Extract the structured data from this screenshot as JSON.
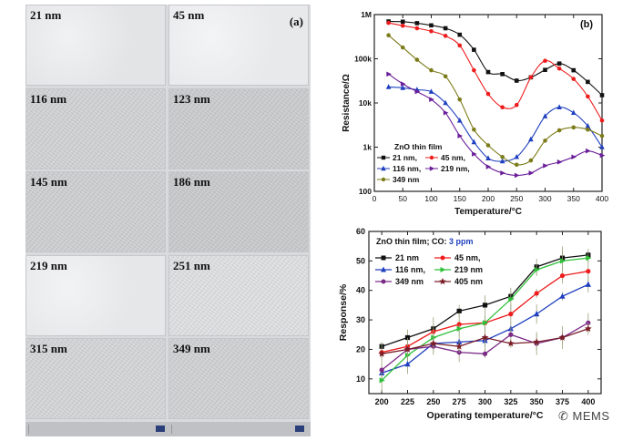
{
  "figure_a": {
    "panel_label": "(a)",
    "tiles": [
      "21 nm",
      "45 nm",
      "116 nm",
      "123 nm",
      "145 nm",
      "186 nm",
      "219 nm",
      "251 nm",
      "315 nm",
      "349 nm"
    ]
  },
  "watermark": "MEMS",
  "chart_data": [
    {
      "type": "line",
      "panel_label": "(b)",
      "xlabel": "Temperature/°C",
      "ylabel": "Resistance/Ω",
      "yscale": "log",
      "xlim": [
        0,
        400
      ],
      "ylim": [
        100,
        1000000
      ],
      "x_ticks": [
        "0",
        "50",
        "100",
        "150",
        "200",
        "250",
        "300",
        "350",
        "400"
      ],
      "y_ticks": [
        "100",
        "1k",
        "10k",
        "100k",
        "1M"
      ],
      "legend_title": "ZnO thin film",
      "legend_labels": [
        "21 nm,",
        "45 nm,",
        "116 nm,",
        "219 nm,",
        "349 nm"
      ],
      "x": [
        25,
        50,
        75,
        100,
        125,
        150,
        175,
        200,
        225,
        250,
        275,
        300,
        325,
        350,
        375,
        400
      ],
      "series": [
        {
          "name": "21 nm",
          "color": "#111111",
          "marker": "square",
          "values": [
            700000,
            690000,
            640000,
            570000,
            490000,
            350000,
            160000,
            50000,
            45000,
            32000,
            38000,
            56000,
            78000,
            55000,
            30000,
            15000
          ]
        },
        {
          "name": "45 nm",
          "color": "#ee1c1c",
          "marker": "circle",
          "values": [
            650000,
            560000,
            490000,
            420000,
            330000,
            200000,
            55000,
            16000,
            8000,
            9000,
            38000,
            90000,
            60000,
            35000,
            14000,
            4000
          ]
        },
        {
          "name": "116 nm",
          "color": "#1f3fbf",
          "marker": "triangle-up",
          "values": [
            23000,
            22000,
            20000,
            18000,
            10000,
            4000,
            1300,
            560,
            480,
            600,
            1500,
            5000,
            8000,
            6000,
            3000,
            1000
          ]
        },
        {
          "name": "219 nm",
          "color": "#6a1e9a",
          "marker": "triangle-right",
          "values": [
            45000,
            27000,
            18000,
            12000,
            6000,
            1800,
            700,
            360,
            260,
            230,
            260,
            380,
            460,
            600,
            820,
            650
          ]
        },
        {
          "name": "349 nm",
          "color": "#7c7c1a",
          "marker": "circle",
          "values": [
            340000,
            180000,
            95000,
            55000,
            40000,
            12000,
            2500,
            1100,
            600,
            400,
            500,
            1400,
            2400,
            2800,
            2500,
            1800
          ]
        }
      ]
    },
    {
      "type": "line",
      "xlabel": "Operating temperature/°C",
      "ylabel": "Response/%",
      "xlim": [
        187.5,
        412.5
      ],
      "ylim": [
        5,
        60
      ],
      "x_ticks": [
        "200",
        "225",
        "250",
        "275",
        "300",
        "325",
        "350",
        "375",
        "400"
      ],
      "y_ticks": [
        "10",
        "20",
        "30",
        "40",
        "50",
        "60"
      ],
      "legend_title": "ZnO thin film; CO: ",
      "legend_title_highlight": "3 ppm",
      "legend_labels": [
        "21 nm",
        "45 nm,",
        "116 nm,",
        "219 nm",
        "349 nm",
        "405 nm"
      ],
      "x": [
        200,
        225,
        250,
        275,
        300,
        325,
        350,
        375,
        400
      ],
      "series": [
        {
          "name": "21 nm",
          "color": "#111111",
          "marker": "square",
          "values": [
            21,
            24,
            27,
            33,
            35,
            38,
            48,
            51,
            52
          ]
        },
        {
          "name": "45 nm",
          "color": "#ee1c1c",
          "marker": "circle",
          "values": [
            19,
            21,
            26,
            28.5,
            29,
            32,
            39,
            45,
            46.5
          ]
        },
        {
          "name": "116 nm",
          "color": "#1f3fbf",
          "marker": "triangle-up",
          "values": [
            12,
            15,
            22,
            22.5,
            23,
            27,
            32,
            38,
            42
          ]
        },
        {
          "name": "219 nm",
          "color": "#2fc13a",
          "marker": "triangle-right",
          "values": [
            9.5,
            18,
            24,
            27,
            29,
            37,
            47,
            50,
            51
          ]
        },
        {
          "name": "349 nm",
          "color": "#7a2a86",
          "marker": "circle",
          "values": [
            13,
            20,
            21,
            19,
            18.5,
            25,
            22,
            24,
            29
          ]
        },
        {
          "name": "405 nm",
          "color": "#7a1e28",
          "marker": "star",
          "values": [
            18.5,
            20,
            22,
            21,
            24,
            22,
            22.5,
            24,
            27
          ]
        }
      ]
    }
  ]
}
